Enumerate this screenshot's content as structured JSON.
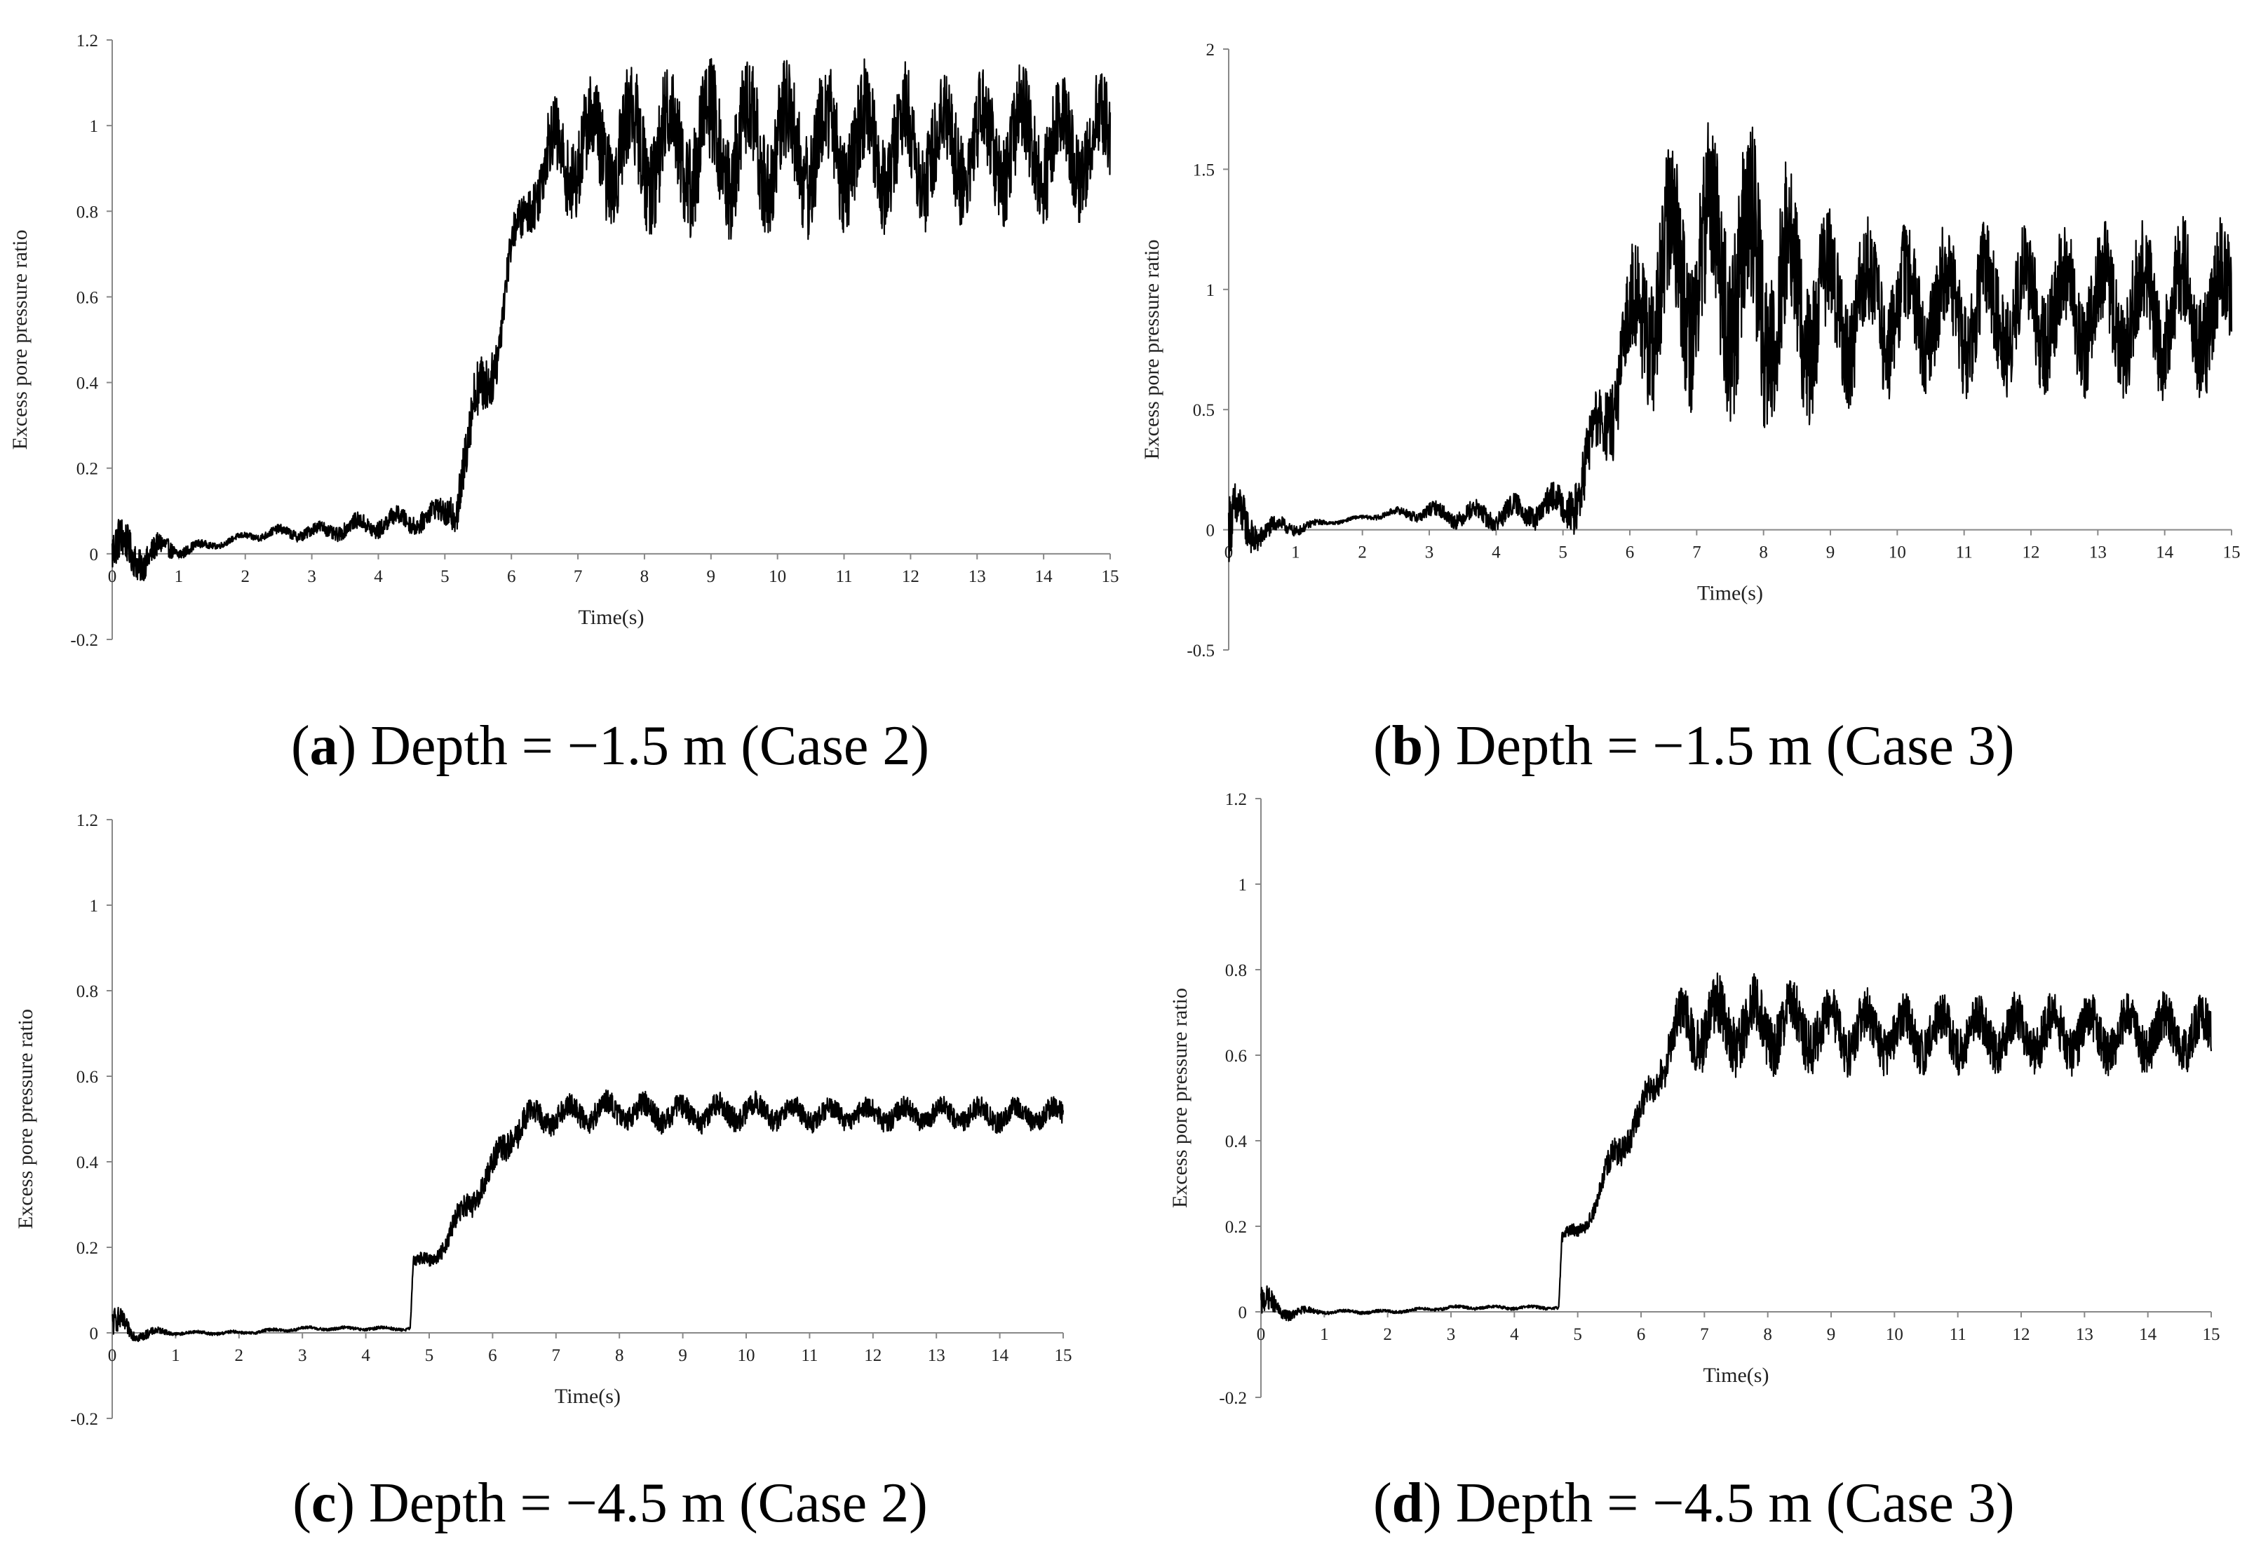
{
  "chart_data": [
    {
      "type": "line",
      "panel": "a",
      "caption": {
        "letter": "a",
        "text": ") Depth = −1.5 m (Case 2)"
      },
      "xlabel": "Time(s)",
      "ylabel": "Excess pore pressure ratio",
      "xlim": [
        0,
        15
      ],
      "ylim": [
        -0.2,
        1.2
      ],
      "x_ticks": [
        "0",
        "1",
        "2",
        "3",
        "4",
        "5",
        "6",
        "7",
        "8",
        "9",
        "10",
        "11",
        "12",
        "13",
        "14",
        "15"
      ],
      "y_ticks": [
        "-0.2",
        "0",
        "0.2",
        "0.4",
        "0.6",
        "0.8",
        "1",
        "1.2"
      ],
      "grid": false,
      "series": [
        {
          "name": "Excess pore pressure ratio",
          "color": "#000000",
          "x": [
            0,
            0.5,
            1,
            1.5,
            2,
            2.5,
            3,
            3.5,
            4,
            4.5,
            5,
            5.2,
            5.5,
            5.8,
            6,
            6.3,
            6.6,
            7,
            7.5,
            8,
            9,
            10,
            11,
            12,
            13,
            14,
            15
          ],
          "y": [
            0,
            0,
            0.01,
            0.02,
            0.04,
            0.05,
            0.05,
            0.06,
            0.07,
            0.08,
            0.09,
            0.15,
            0.35,
            0.5,
            0.7,
            0.85,
            0.92,
            0.94,
            0.95,
            0.95,
            0.95,
            0.95,
            0.95,
            0.95,
            0.95,
            0.95,
            0.96
          ],
          "osc_amplitude": [
            0.08,
            0.05,
            0.02,
            0.01,
            0.01,
            0.015,
            0.02,
            0.025,
            0.03,
            0.03,
            0.04,
            0.08,
            0.1,
            0.08,
            0.06,
            0.08,
            0.12,
            0.14,
            0.16,
            0.17,
            0.18,
            0.18,
            0.17,
            0.16,
            0.16,
            0.16,
            0.14
          ]
        }
      ]
    },
    {
      "type": "line",
      "panel": "b",
      "caption": {
        "letter": "b",
        "text": ") Depth = −1.5 m (Case 3)"
      },
      "xlabel": "Time(s)",
      "ylabel": "Excess pore pressure ratio",
      "xlim": [
        0,
        15
      ],
      "ylim": [
        -0.5,
        2
      ],
      "x_ticks": [
        "0",
        "1",
        "2",
        "3",
        "4",
        "5",
        "6",
        "7",
        "8",
        "9",
        "10",
        "11",
        "12",
        "13",
        "14",
        "15"
      ],
      "y_ticks": [
        "-0.5",
        "0",
        "0.5",
        "1",
        "1.5",
        "2"
      ],
      "grid": false,
      "series": [
        {
          "name": "Excess pore pressure ratio",
          "color": "#000000",
          "x": [
            0,
            0.5,
            1,
            1.5,
            2,
            2.5,
            3,
            3.5,
            4,
            4.5,
            5,
            5.3,
            5.6,
            6,
            6.5,
            7,
            7.5,
            8,
            8.5,
            9,
            10,
            11,
            12,
            13,
            14,
            15
          ],
          "y": [
            0,
            0,
            0.01,
            0.03,
            0.05,
            0.07,
            0.07,
            0.06,
            0.06,
            0.08,
            0.1,
            0.2,
            0.45,
            0.8,
            1.05,
            1.1,
            1.1,
            1.0,
            0.95,
            0.92,
            0.92,
            0.92,
            0.92,
            0.92,
            0.92,
            0.92
          ],
          "osc_amplitude": [
            0.2,
            0.06,
            0.03,
            0.01,
            0.01,
            0.02,
            0.04,
            0.05,
            0.06,
            0.07,
            0.09,
            0.18,
            0.2,
            0.3,
            0.45,
            0.5,
            0.55,
            0.55,
            0.45,
            0.35,
            0.3,
            0.3,
            0.3,
            0.3,
            0.32,
            0.32
          ]
        }
      ]
    },
    {
      "type": "line",
      "panel": "c",
      "caption": {
        "letter": "c",
        "text": ") Depth = −4.5 m (Case 2)"
      },
      "xlabel": "Time(s)",
      "ylabel": "Excess pore pressure ratio",
      "xlim": [
        0,
        15
      ],
      "ylim": [
        -0.2,
        1.2
      ],
      "x_ticks": [
        "0",
        "1",
        "2",
        "3",
        "4",
        "5",
        "6",
        "7",
        "8",
        "9",
        "10",
        "11",
        "12",
        "13",
        "14",
        "15"
      ],
      "y_ticks": [
        "-0.2",
        "0",
        "0.2",
        "0.4",
        "0.6",
        "0.8",
        "1",
        "1.2"
      ],
      "grid": false,
      "series": [
        {
          "name": "Excess pore pressure ratio",
          "color": "#000000",
          "x": [
            0,
            0.3,
            1,
            2,
            3,
            4,
            4.7,
            4.75,
            5,
            5.3,
            5.6,
            6,
            6.3,
            6.6,
            7,
            8,
            9,
            10,
            11,
            12,
            13,
            14,
            15
          ],
          "y": [
            0.02,
            0,
            0,
            0,
            0.01,
            0.01,
            0.01,
            0.16,
            0.17,
            0.22,
            0.3,
            0.38,
            0.47,
            0.5,
            0.51,
            0.52,
            0.51,
            0.52,
            0.51,
            0.51,
            0.51,
            0.51,
            0.51
          ],
          "osc_amplitude": [
            0.05,
            0.02,
            0.005,
            0.005,
            0.005,
            0.005,
            0.005,
            0.02,
            0.02,
            0.03,
            0.04,
            0.04,
            0.05,
            0.04,
            0.04,
            0.04,
            0.04,
            0.04,
            0.035,
            0.035,
            0.035,
            0.035,
            0.035
          ]
        }
      ]
    },
    {
      "type": "line",
      "panel": "d",
      "caption": {
        "letter": "d",
        "text": ") Depth = −4.5 m (Case 3)"
      },
      "xlabel": "Time(s)",
      "ylabel": "Excess pore pressure ratio",
      "xlim": [
        0,
        15
      ],
      "ylim": [
        -0.2,
        1.2
      ],
      "x_ticks": [
        "0",
        "1",
        "2",
        "3",
        "4",
        "5",
        "6",
        "7",
        "8",
        "9",
        "10",
        "11",
        "12",
        "13",
        "14",
        "15"
      ],
      "y_ticks": [
        "-0.2",
        "0",
        "0.2",
        "0.4",
        "0.6",
        "0.8",
        "1",
        "1.2"
      ],
      "grid": false,
      "series": [
        {
          "name": "Excess pore pressure ratio",
          "color": "#000000",
          "x": [
            0,
            0.3,
            1,
            2,
            3,
            4,
            4.7,
            4.75,
            5,
            5.3,
            5.6,
            6,
            6.3,
            6.6,
            7,
            8,
            9,
            10,
            11,
            12,
            13,
            14,
            15
          ],
          "y": [
            0.02,
            0,
            0,
            0,
            0.01,
            0.01,
            0.01,
            0.17,
            0.19,
            0.25,
            0.38,
            0.45,
            0.58,
            0.66,
            0.67,
            0.67,
            0.66,
            0.65,
            0.65,
            0.65,
            0.65,
            0.65,
            0.65
          ],
          "osc_amplitude": [
            0.05,
            0.02,
            0.005,
            0.005,
            0.005,
            0.005,
            0.005,
            0.02,
            0.02,
            0.03,
            0.05,
            0.05,
            0.06,
            0.08,
            0.1,
            0.1,
            0.09,
            0.08,
            0.08,
            0.08,
            0.08,
            0.08,
            0.08
          ]
        }
      ]
    }
  ]
}
